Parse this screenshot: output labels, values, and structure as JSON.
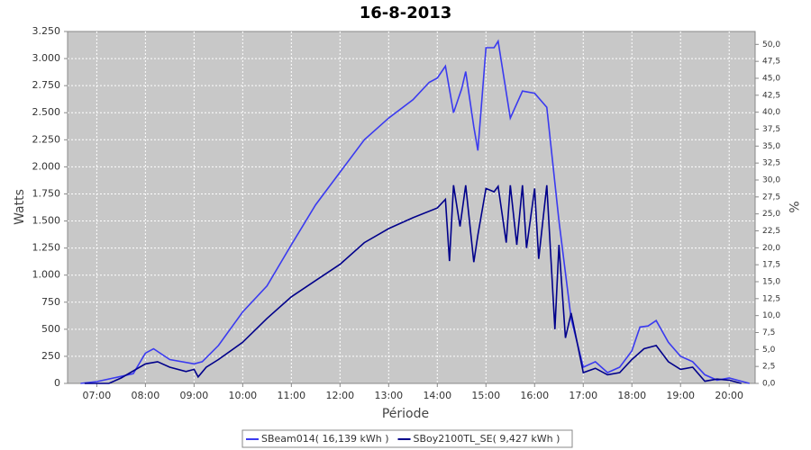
{
  "chart_data": {
    "type": "line",
    "title": "16-8-2013",
    "xlabel": "Période",
    "ylabel": "Watts",
    "y2label": "%",
    "xlim": [
      "06:24",
      "20:32"
    ],
    "xticks": [
      "07:00",
      "08:00",
      "09:00",
      "10:00",
      "11:00",
      "12:00",
      "13:00",
      "14:00",
      "15:00",
      "16:00",
      "17:00",
      "18:00",
      "19:00",
      "20:00"
    ],
    "ylim": [
      0,
      3250
    ],
    "yticks": [
      0,
      {
        "value": 250,
        "label": "250"
      },
      {
        "value": 500,
        "label": "500"
      },
      {
        "value": 750,
        "label": "750"
      },
      {
        "value": 1000,
        "label": "1.000"
      },
      {
        "value": 1250,
        "label": "1.250"
      },
      {
        "value": 1500,
        "label": "1.500"
      },
      {
        "value": 1750,
        "label": "1.750"
      },
      {
        "value": 2000,
        "label": "2.000"
      },
      {
        "value": 2250,
        "label": "2.250"
      },
      {
        "value": 2500,
        "label": "2.500"
      },
      {
        "value": 2750,
        "label": "2.750"
      },
      {
        "value": 3000,
        "label": "3.000"
      },
      {
        "value": 3250,
        "label": "3.250"
      }
    ],
    "y2lim": [
      0,
      51.9
    ],
    "y2ticks": [
      {
        "value": 0,
        "label": "0,0"
      },
      {
        "value": 2.5,
        "label": "2,5"
      },
      {
        "value": 5,
        "label": "5,0"
      },
      {
        "value": 7.5,
        "label": "7,5"
      },
      {
        "value": 10,
        "label": "10,0"
      },
      {
        "value": 12.5,
        "label": "12,5"
      },
      {
        "value": 15,
        "label": "15,0"
      },
      {
        "value": 17.5,
        "label": "17,5"
      },
      {
        "value": 20,
        "label": "20,0"
      },
      {
        "value": 22.5,
        "label": "22,5"
      },
      {
        "value": 25,
        "label": "25,0"
      },
      {
        "value": 27.5,
        "label": "27,5"
      },
      {
        "value": 30,
        "label": "30,0"
      },
      {
        "value": 32.5,
        "label": "32,5"
      },
      {
        "value": 35,
        "label": "35,0"
      },
      {
        "value": 37.5,
        "label": "37,5"
      },
      {
        "value": 40,
        "label": "40,0"
      },
      {
        "value": 42.5,
        "label": "42,5"
      },
      {
        "value": 45,
        "label": "45,0"
      },
      {
        "value": 47.5,
        "label": "47,5"
      },
      {
        "value": 50,
        "label": "50,0"
      }
    ],
    "grid": true,
    "legend": "bottom",
    "series": [
      {
        "name": "SBeam014( 16,139 kWh )",
        "color": "#3a3af0",
        "x": [
          "06:40",
          "07:00",
          "07:30",
          "07:45",
          "08:00",
          "08:10",
          "08:30",
          "09:00",
          "09:10",
          "09:30",
          "10:00",
          "10:30",
          "11:00",
          "11:30",
          "12:00",
          "12:30",
          "13:00",
          "13:30",
          "13:50",
          "14:00",
          "14:10",
          "14:20",
          "14:30",
          "14:35",
          "14:45",
          "14:50",
          "15:00",
          "15:10",
          "15:15",
          "15:30",
          "15:45",
          "16:00",
          "16:15",
          "16:30",
          "16:45",
          "17:00",
          "17:15",
          "17:30",
          "17:45",
          "18:00",
          "18:10",
          "18:20",
          "18:30",
          "18:45",
          "19:00",
          "19:15",
          "19:30",
          "19:45",
          "20:00",
          "20:15",
          "20:25"
        ],
        "values": [
          0,
          17,
          65,
          90,
          280,
          320,
          220,
          180,
          200,
          350,
          660,
          900,
          1280,
          1650,
          1950,
          2250,
          2450,
          2620,
          2780,
          2820,
          2930,
          2500,
          2720,
          2880,
          2370,
          2150,
          3100,
          3100,
          3160,
          2450,
          2700,
          2680,
          2550,
          1500,
          600,
          150,
          200,
          100,
          150,
          300,
          520,
          530,
          580,
          380,
          250,
          200,
          80,
          30,
          50,
          20,
          0
        ]
      },
      {
        "name": "SBoy2100TL_SE( 9,427 kWh )",
        "color": "#00008b",
        "x": [
          "06:45",
          "07:15",
          "07:30",
          "08:00",
          "08:15",
          "08:30",
          "08:50",
          "09:00",
          "09:05",
          "09:15",
          "09:30",
          "10:00",
          "10:30",
          "11:00",
          "11:30",
          "12:00",
          "12:30",
          "13:00",
          "13:30",
          "14:00",
          "14:10",
          "14:15",
          "14:20",
          "14:28",
          "14:35",
          "14:45",
          "14:50",
          "15:00",
          "15:10",
          "15:15",
          "15:25",
          "15:30",
          "15:38",
          "15:45",
          "15:50",
          "16:00",
          "16:05",
          "16:15",
          "16:25",
          "16:30",
          "16:38",
          "16:45",
          "17:00",
          "17:15",
          "17:30",
          "17:45",
          "18:00",
          "18:15",
          "18:30",
          "18:45",
          "19:00",
          "19:15",
          "19:30",
          "19:45",
          "20:00",
          "20:15"
        ],
        "values": [
          0,
          0,
          50,
          180,
          200,
          150,
          110,
          130,
          60,
          150,
          220,
          380,
          600,
          800,
          950,
          1100,
          1300,
          1430,
          1530,
          1620,
          1700,
          1130,
          1830,
          1450,
          1830,
          1120,
          1370,
          1800,
          1770,
          1820,
          1300,
          1830,
          1280,
          1830,
          1250,
          1800,
          1150,
          1830,
          500,
          1280,
          420,
          650,
          100,
          140,
          80,
          100,
          220,
          320,
          350,
          200,
          130,
          150,
          20,
          40,
          30,
          0
        ]
      }
    ]
  }
}
